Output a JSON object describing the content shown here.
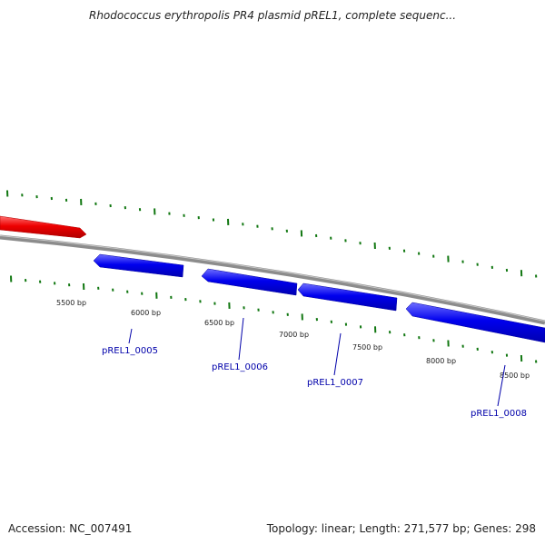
{
  "title": "Rhodococcus erythropolis PR4 plasmid pREL1, complete sequenc...",
  "footer": {
    "accession": "Accession: NC_007491",
    "summary": "Topology: linear; Length: 271,577 bp; Genes: 298"
  },
  "colors": {
    "backbone": "#8c8c8c",
    "gene_forward": "#ee0000",
    "gene_reverse": "#0000ee",
    "tick": "#117711",
    "gene_label": "#0000aa"
  },
  "ruler": {
    "labels": [
      "5500 bp",
      "6000 bp",
      "6500 bp",
      "7000 bp",
      "7500 bp",
      "8000 bp",
      "8500 bp"
    ]
  },
  "genes": [
    {
      "label": "pREL1_0005",
      "strand": "reverse"
    },
    {
      "label": "pREL1_0006",
      "strand": "reverse"
    },
    {
      "label": "pREL1_0007",
      "strand": "reverse"
    },
    {
      "label": "pREL1_0008",
      "strand": "reverse"
    }
  ]
}
